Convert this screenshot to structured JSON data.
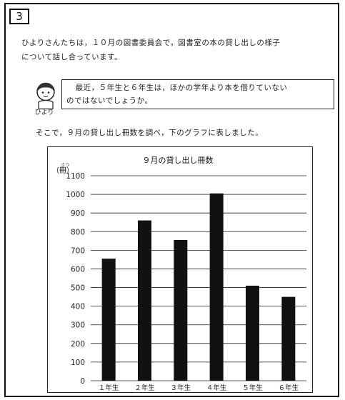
{
  "question_number": "3",
  "intro_line1": "ひよりさんたちは，１０月の図書委員会で，図書室の本の貸し出しの様子",
  "intro_line2": "について話し合っています。",
  "speaker_name": "ひより",
  "speech_line1": "最近，５年生と６年生は，ほかの学年より本を借りていない",
  "speech_line2": "のではないでしょうか。",
  "lead_text": "そこで，９月の貸し出し冊数を調べ，下のグラフに表しました。",
  "chart_data": {
    "type": "bar",
    "title": "９月の貸し出し冊数",
    "ylabel_ruby": "さつ",
    "ylabel": "（冊）",
    "categories": [
      "１年生",
      "２年生",
      "３年生",
      "４年生",
      "５年生",
      "６年生"
    ],
    "values": [
      655,
      860,
      755,
      1005,
      510,
      450
    ],
    "yticks": [
      "0",
      "100",
      "200",
      "300",
      "400",
      "500",
      "600",
      "700",
      "800",
      "900",
      "1000",
      "1100"
    ],
    "ylim": [
      0,
      1100
    ],
    "grid": true,
    "bar_color": "#111111"
  }
}
